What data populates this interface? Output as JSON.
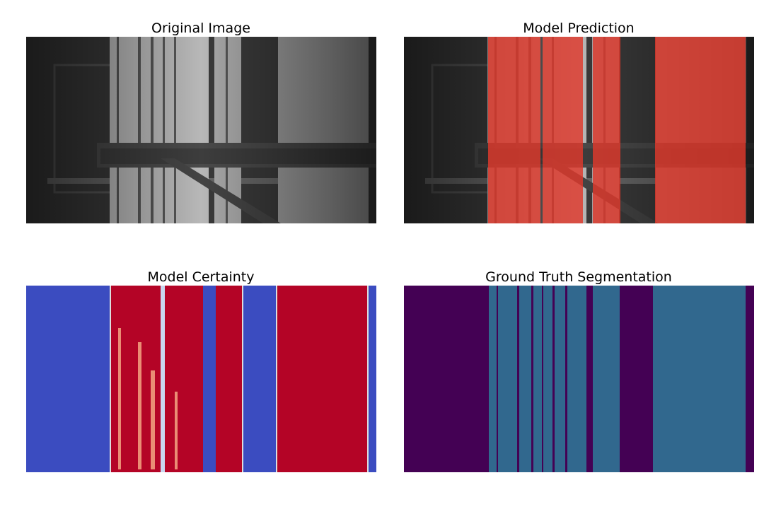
{
  "panels": [
    {
      "title": "Original Image"
    },
    {
      "title": "Model Prediction"
    },
    {
      "title": "Model Certainty"
    },
    {
      "title": "Ground Truth Segmentation"
    }
  ]
}
